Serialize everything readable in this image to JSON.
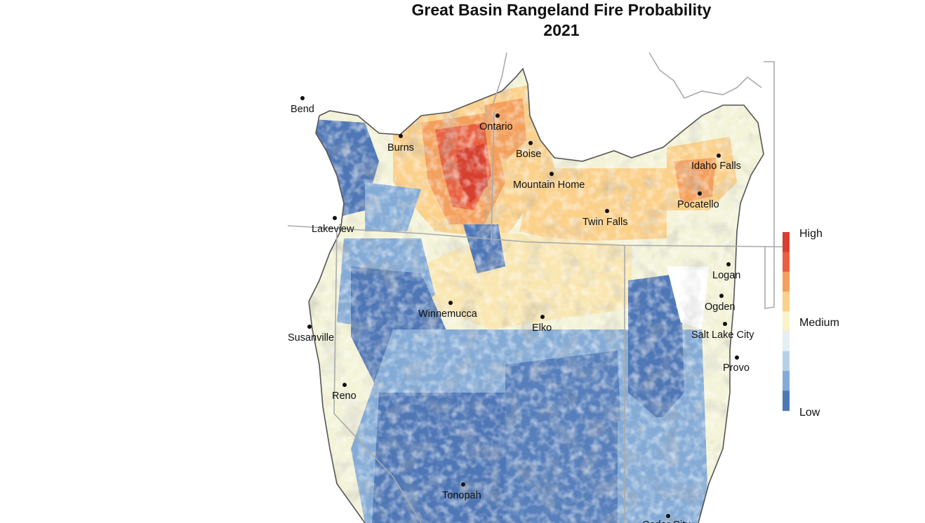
{
  "title": {
    "line1": "Great Basin Rangeland Fire Probability",
    "line2": "2021"
  },
  "legend": {
    "high_label": "High",
    "medium_label": "Medium",
    "low_label": "Low",
    "colors": [
      "#d73027",
      "#f46d43",
      "#fdae61",
      "#fee090",
      "#ffffbf",
      "#e0f3f8",
      "#abd9e9",
      "#74add1",
      "#4575b4"
    ],
    "class_colors_top_to_bottom": [
      "#d7402e",
      "#e8603f",
      "#f4a05c",
      "#fbd089",
      "#f8f3c8",
      "#e4eff4",
      "#b7d2e8",
      "#84abd6",
      "#4f77b6"
    ]
  },
  "cities": [
    {
      "name": "Bend"
    },
    {
      "name": "Burns"
    },
    {
      "name": "Ontario"
    },
    {
      "name": "Boise"
    },
    {
      "name": "Mountain Home"
    },
    {
      "name": "Idaho Falls"
    },
    {
      "name": "Pocatello"
    },
    {
      "name": "Twin Falls"
    },
    {
      "name": "Lakeview"
    },
    {
      "name": "Logan"
    },
    {
      "name": "Ogden"
    },
    {
      "name": "Winnemucca"
    },
    {
      "name": "Elko"
    },
    {
      "name": "Susanville"
    },
    {
      "name": "Salt Lake City"
    },
    {
      "name": "Provo"
    },
    {
      "name": "Reno"
    },
    {
      "name": "Tonopah"
    },
    {
      "name": "Cedar City"
    }
  ]
}
